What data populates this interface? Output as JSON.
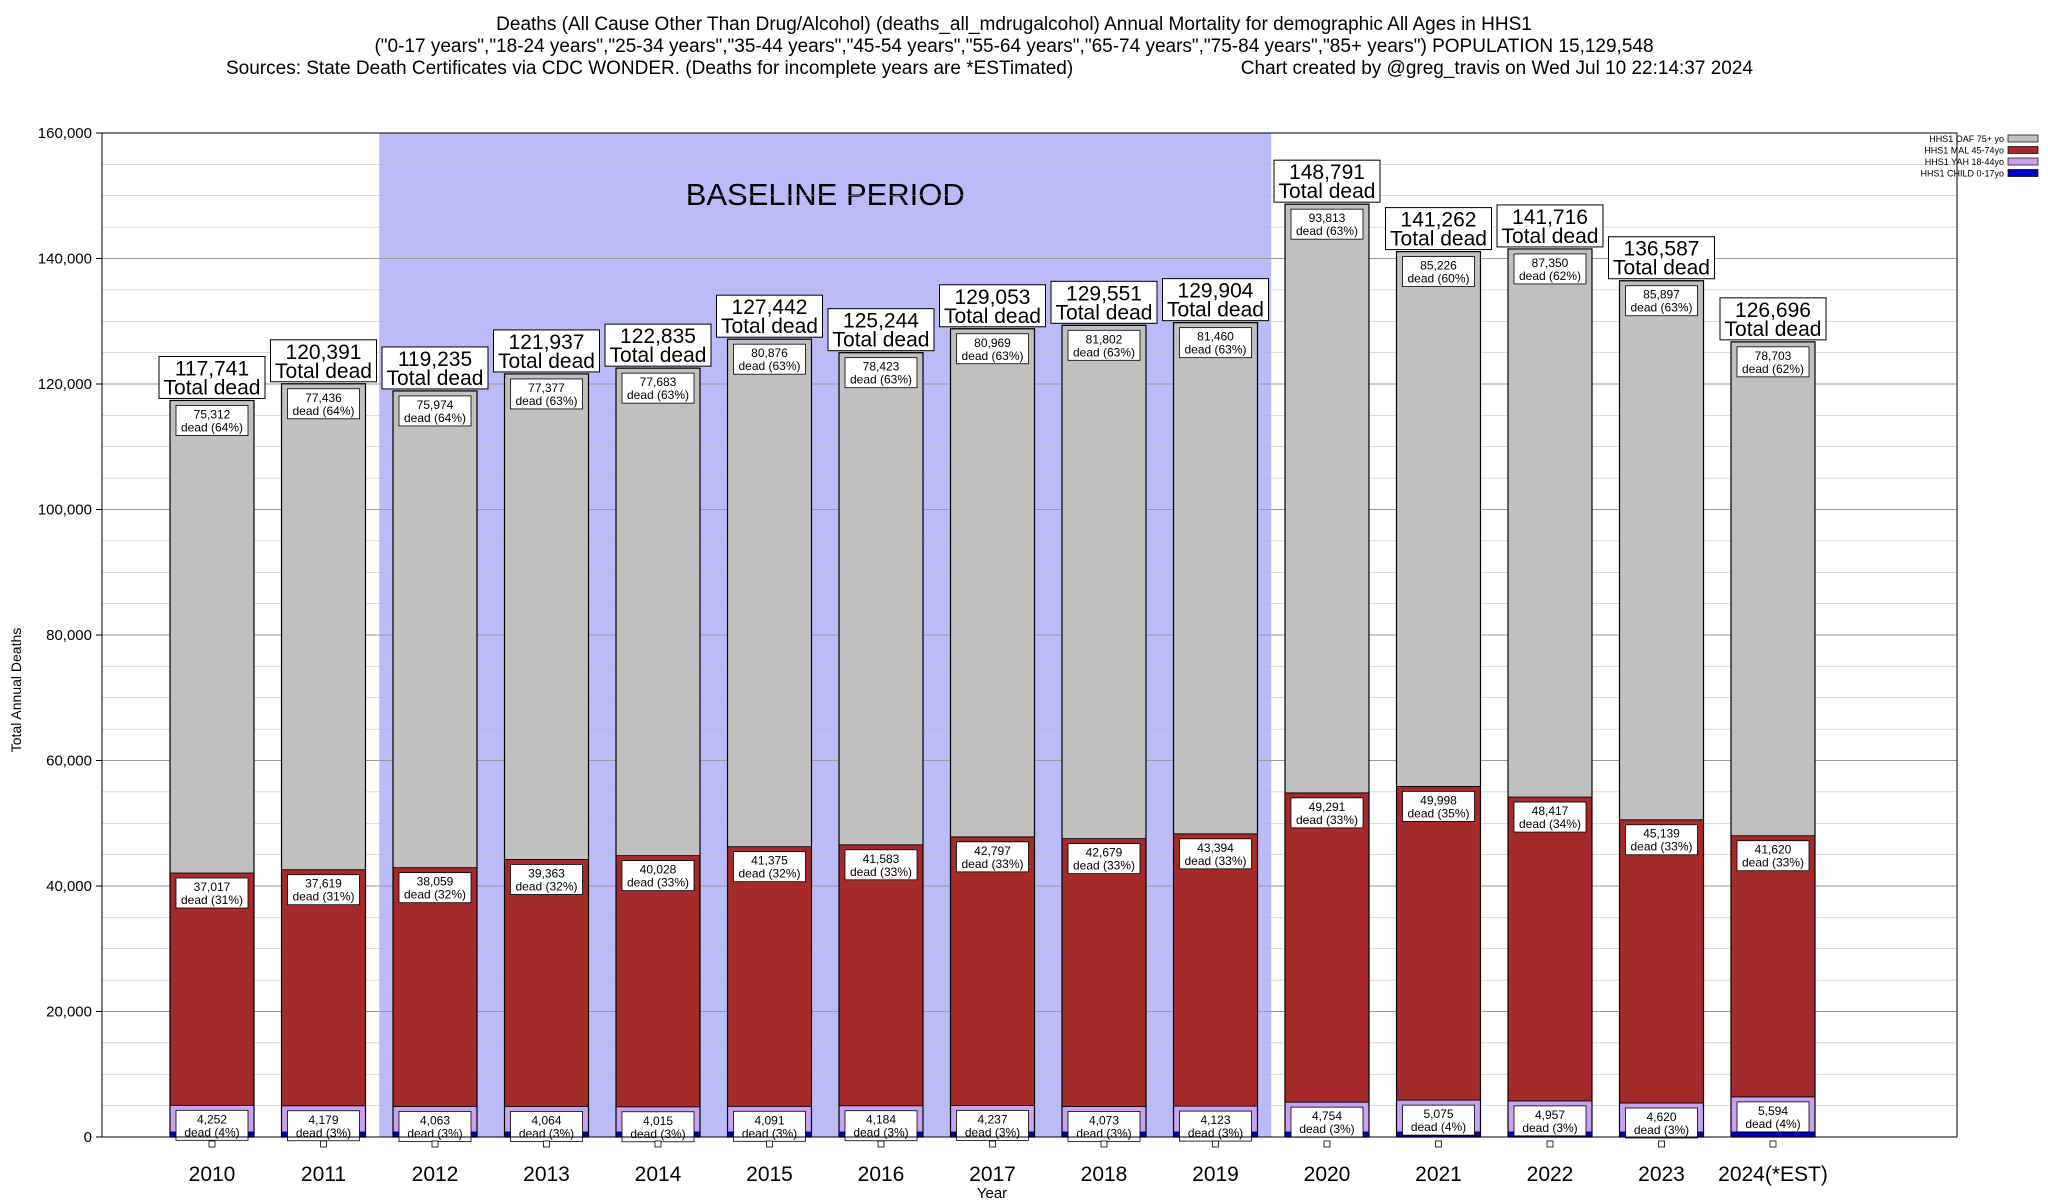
{
  "chart_data": {
    "type": "bar",
    "stacked": true,
    "title_lines": [
      "Deaths (All Cause Other Than Drug/Alcohol) (deaths_all_mdrugalcohol) Annual Mortality for demographic All Ages in HHS1",
      "(\"0-17 years\",\"18-24 years\",\"25-34 years\",\"35-44 years\",\"45-54 years\",\"55-64 years\",\"65-74 years\",\"75-84 years\",\"85+ years\") POPULATION 15,129,548",
      "Sources: State Death Certificates via CDC WONDER. (Deaths for incomplete years are *ESTimated)",
      "Chart created by @greg_travis on Wed Jul 10 22:14:37 2024"
    ],
    "xlabel": "Year",
    "ylabel": "Total Annual Deaths",
    "ylim": [
      0,
      160000
    ],
    "yticks": [
      0,
      20000,
      40000,
      60000,
      80000,
      100000,
      120000,
      140000,
      160000
    ],
    "ytick_labels": [
      "0",
      "20,000",
      "40,000",
      "60,000",
      "80,000",
      "100,000",
      "120,000",
      "140,000",
      "160,000"
    ],
    "grid": true,
    "legend_placement": "top-right",
    "baseline_label": "BASELINE PERIOD",
    "baseline_range": [
      "2012",
      "2019"
    ],
    "total_label_suffix": "Total dead",
    "categories": [
      "2010",
      "2011",
      "2012",
      "2013",
      "2014",
      "2015",
      "2016",
      "2017",
      "2018",
      "2019",
      "2020",
      "2021",
      "2022",
      "2023",
      "2024(*EST)"
    ],
    "totals": [
      117741,
      120391,
      119235,
      121937,
      122835,
      127442,
      125244,
      129053,
      129551,
      129904,
      148791,
      141262,
      141716,
      136587,
      126696
    ],
    "total_labels": [
      "117,741",
      "120,391",
      "119,235",
      "121,937",
      "122,835",
      "127,442",
      "125,244",
      "129,053",
      "129,551",
      "129,904",
      "148,791",
      "141,262",
      "141,716",
      "136,587",
      "126,696"
    ],
    "series": [
      {
        "name": "HHS1 CHILD 0-17yo",
        "color": "#0000cc",
        "values": [
          800,
          800,
          800,
          800,
          800,
          800,
          800,
          800,
          800,
          800,
          800,
          800,
          800,
          800,
          800
        ]
      },
      {
        "name": "HHS1 YAH 18-44yo",
        "color": "#c8a2f0",
        "values": [
          4252,
          4179,
          4063,
          4064,
          4015,
          4091,
          4184,
          4237,
          4073,
          4123,
          4754,
          5075,
          4957,
          4620,
          5594
        ],
        "labels": [
          "4,252",
          "4,179",
          "4,063",
          "4,064",
          "4,015",
          "4,091",
          "4,184",
          "4,237",
          "4,073",
          "4,123",
          "4,754",
          "5,075",
          "4,957",
          "4,620",
          "5,594"
        ],
        "pct_labels": [
          "dead (4%)",
          "dead (3%)",
          "dead (3%)",
          "dead (3%)",
          "dead (3%)",
          "dead (3%)",
          "dead (3%)",
          "dead (3%)",
          "dead (3%)",
          "dead (3%)",
          "dead (3%)",
          "dead (4%)",
          "dead (3%)",
          "dead (3%)",
          "dead (4%)"
        ]
      },
      {
        "name": "HHS1 MAL 45-74yo",
        "color": "#a52a2a",
        "values": [
          37017,
          37619,
          38059,
          39363,
          40028,
          41375,
          41583,
          42797,
          42679,
          43394,
          49291,
          49998,
          48417,
          45139,
          41620
        ],
        "labels": [
          "37,017",
          "37,619",
          "38,059",
          "39,363",
          "40,028",
          "41,375",
          "41,583",
          "42,797",
          "42,679",
          "43,394",
          "49,291",
          "49,998",
          "48,417",
          "45,139",
          "41,620"
        ],
        "pct_labels": [
          "dead (31%)",
          "dead (31%)",
          "dead (32%)",
          "dead (32%)",
          "dead (33%)",
          "dead (32%)",
          "dead (33%)",
          "dead (33%)",
          "dead (33%)",
          "dead (33%)",
          "dead (33%)",
          "dead (35%)",
          "dead (34%)",
          "dead (33%)",
          "dead (33%)"
        ]
      },
      {
        "name": "HHS1 OAF 75+ yo",
        "color": "#c0c0c0",
        "values": [
          75312,
          77436,
          75974,
          77377,
          77683,
          80876,
          78423,
          80969,
          81802,
          81460,
          93813,
          85226,
          87350,
          85897,
          78703
        ],
        "labels": [
          "75,312",
          "77,436",
          "75,974",
          "77,377",
          "77,683",
          "80,876",
          "78,423",
          "80,969",
          "81,802",
          "81,460",
          "93,813",
          "85,226",
          "87,350",
          "85,897",
          "78,703"
        ],
        "pct_labels": [
          "dead (64%)",
          "dead (64%)",
          "dead (64%)",
          "dead (63%)",
          "dead (63%)",
          "dead (63%)",
          "dead (63%)",
          "dead (63%)",
          "dead (63%)",
          "dead (63%)",
          "dead (63%)",
          "dead (60%)",
          "dead (62%)",
          "dead (63%)",
          "dead (62%)"
        ]
      }
    ],
    "legend_order": [
      "HHS1 OAF 75+ yo",
      "HHS1 MAL 45-74yo",
      "HHS1 YAH 18-44yo",
      "HHS1 CHILD 0-17yo"
    ]
  }
}
